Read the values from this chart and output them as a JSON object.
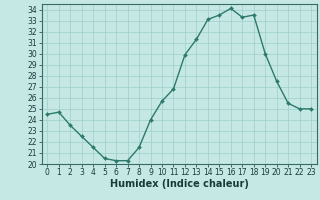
{
  "x": [
    0,
    1,
    2,
    3,
    4,
    5,
    6,
    7,
    8,
    9,
    10,
    11,
    12,
    13,
    14,
    15,
    16,
    17,
    18,
    19,
    20,
    21,
    22,
    23
  ],
  "y": [
    24.5,
    24.7,
    23.5,
    22.5,
    21.5,
    20.5,
    20.3,
    20.3,
    21.5,
    24.0,
    25.7,
    26.8,
    29.9,
    31.3,
    33.1,
    33.5,
    34.1,
    33.3,
    33.5,
    30.0,
    27.5,
    25.5,
    25.0,
    25.0
  ],
  "line_color": "#2d7a6a",
  "marker_color": "#2d7a6a",
  "bg_color": "#c5e8e5",
  "grid_color": "#9ecfca",
  "xlabel": "Humidex (Indice chaleur)",
  "xlim": [
    -0.5,
    23.5
  ],
  "ylim": [
    20,
    34.5
  ],
  "yticks": [
    20,
    21,
    22,
    23,
    24,
    25,
    26,
    27,
    28,
    29,
    30,
    31,
    32,
    33,
    34
  ],
  "xticks": [
    0,
    1,
    2,
    3,
    4,
    5,
    6,
    7,
    8,
    9,
    10,
    11,
    12,
    13,
    14,
    15,
    16,
    17,
    18,
    19,
    20,
    21,
    22,
    23
  ],
  "xlabel_fontsize": 7,
  "tick_fontsize": 5.5,
  "line_width": 1.0,
  "marker_size": 2.0
}
